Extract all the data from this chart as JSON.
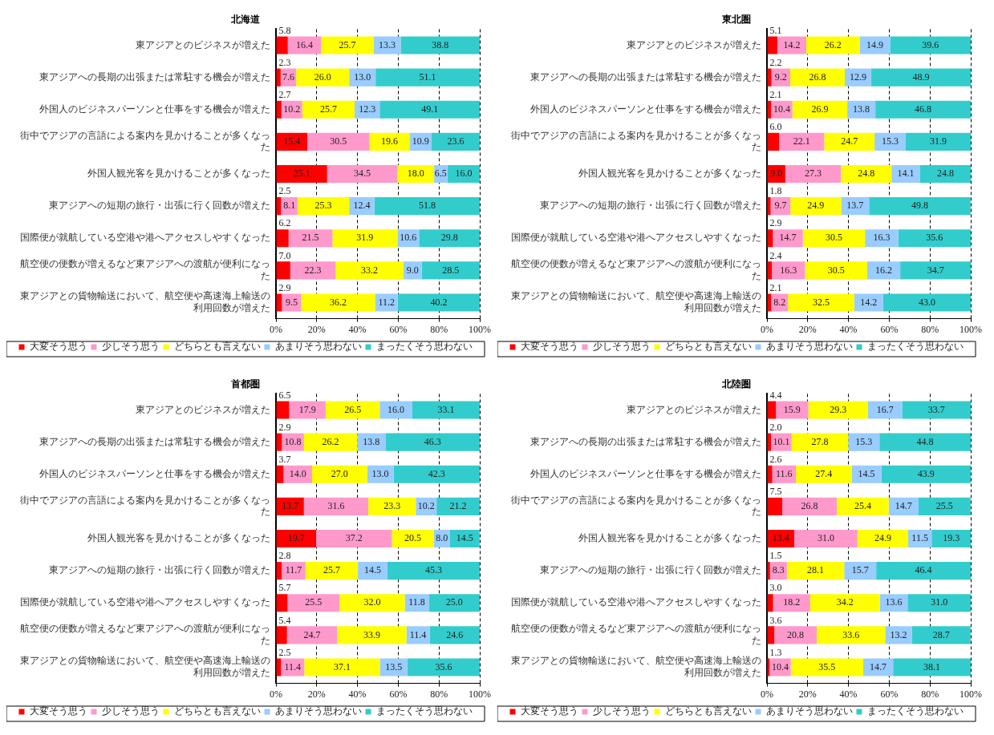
{
  "chart_data": [
    {
      "type": "bar",
      "orientation": "horizontal",
      "stacked": true,
      "title": "北海道",
      "categories": [
        "東アジアとのビジネスが増えた",
        "東アジアへの長期の出張または常駐する機会が増えた",
        "外国人のビジネスパーソンと仕事をする機会が増えた",
        "街中でアジアの言語による案内を見かけることが多くなった",
        "外国人観光客を見かけることが多くなった",
        "東アジアへの短期の旅行・出張に行く回数が増えた",
        "国際便が就航している空港や港へアクセスしやすくなった",
        "航空便の便数が増えるなど東アジアへの渡航が便利になった",
        "東アジアとの貨物輸送において、航空便や高速海上輸送の利用回数が増えた"
      ],
      "series": [
        {
          "name": "大変そう思う",
          "color": "#ff0000",
          "values": [
            5.8,
            2.3,
            2.7,
            15.4,
            25.1,
            2.5,
            6.2,
            7.0,
            2.9
          ],
          "value_labels": [
            "5.8",
            "2.3",
            "2.7",
            "15.4",
            "25.1",
            "2.5",
            "6.2",
            "7.0",
            "2.9"
          ]
        },
        {
          "name": "少しそう思う",
          "color": "#ff99cc",
          "values": [
            16.4,
            7.6,
            10.2,
            30.5,
            34.5,
            8.1,
            21.5,
            22.3,
            9.5
          ],
          "value_labels": [
            "16.4",
            "7.6",
            "10.2",
            "30.5",
            "34.5",
            "8.1",
            "21.5",
            "22.3",
            "9.5"
          ]
        },
        {
          "name": "どちらとも言えない",
          "color": "#ffff00",
          "values": [
            25.7,
            26.0,
            25.7,
            19.6,
            18.0,
            25.3,
            31.9,
            33.2,
            36.2
          ],
          "value_labels": [
            "25.7",
            "26.0",
            "25.7",
            "19.6",
            "18.0",
            "25.3",
            "31.9",
            "33.2",
            "36.2"
          ]
        },
        {
          "name": "あまりそう思わない",
          "color": "#99ccff",
          "values": [
            13.3,
            13.0,
            12.3,
            10.9,
            6.5,
            12.4,
            10.6,
            9.0,
            11.2
          ],
          "value_labels": [
            "13.3",
            "13.0",
            "12.3",
            "10.9",
            "6.5",
            "12.4",
            "10.6",
            "9.0",
            "11.2"
          ]
        },
        {
          "name": "まったくそう思わない",
          "color": "#33cccc",
          "values": [
            38.8,
            51.1,
            49.1,
            23.6,
            16.0,
            51.8,
            29.8,
            28.5,
            40.2
          ],
          "value_labels": [
            "38.8",
            "51.1",
            "49.1",
            "23.6",
            "16.0",
            "51.8",
            "29.8",
            "28.5",
            "40.2"
          ]
        }
      ],
      "xlim": [
        0,
        100
      ],
      "xticks": [
        {
          "value": 0,
          "label": "0%"
        },
        {
          "value": 20,
          "label": "20%"
        },
        {
          "value": 40,
          "label": "40%"
        },
        {
          "value": 60,
          "label": "60%"
        },
        {
          "value": 80,
          "label": "80%"
        },
        {
          "value": 100,
          "label": "100%"
        }
      ],
      "grid": "x",
      "legend": "bottom"
    },
    {
      "type": "bar",
      "orientation": "horizontal",
      "stacked": true,
      "title": "東北圏",
      "categories": [
        "東アジアとのビジネスが増えた",
        "東アジアへの長期の出張または常駐する機会が増えた",
        "外国人のビジネスパーソンと仕事をする機会が増えた",
        "街中でアジアの言語による案内を見かけることが多くなった",
        "外国人観光客を見かけることが多くなった",
        "東アジアへの短期の旅行・出張に行く回数が増えた",
        "国際便が就航している空港や港へアクセスしやすくなった",
        "航空便の便数が増えるなど東アジアへの渡航が便利になった",
        "東アジアとの貨物輸送において、航空便や高速海上輸送の利用回数が増えた"
      ],
      "series": [
        {
          "name": "大変そう思う",
          "color": "#ff0000",
          "values": [
            5.1,
            2.2,
            2.1,
            6.0,
            9.0,
            1.8,
            2.9,
            2.4,
            2.1
          ],
          "value_labels": [
            "5.1",
            "2.2",
            "2.1",
            "6.0",
            "9.0",
            "1.8",
            "2.9",
            "2.4",
            "2.1"
          ]
        },
        {
          "name": "少しそう思う",
          "color": "#ff99cc",
          "values": [
            14.2,
            9.2,
            10.4,
            22.1,
            27.3,
            9.7,
            14.7,
            16.3,
            8.2
          ],
          "value_labels": [
            "14.2",
            "9.2",
            "10.4",
            "22.1",
            "27.3",
            "9.7",
            "14.7",
            "16.3",
            "8.2"
          ]
        },
        {
          "name": "どちらとも言えない",
          "color": "#ffff00",
          "values": [
            26.2,
            26.8,
            26.9,
            24.7,
            24.8,
            24.9,
            30.5,
            30.5,
            32.5
          ],
          "value_labels": [
            "26.2",
            "26.8",
            "26.9",
            "24.7",
            "24.8",
            "24.9",
            "30.5",
            "30.5",
            "32.5"
          ]
        },
        {
          "name": "あまりそう思わない",
          "color": "#99ccff",
          "values": [
            14.9,
            12.9,
            13.8,
            15.3,
            14.1,
            13.7,
            16.3,
            16.2,
            14.2
          ],
          "value_labels": [
            "14.9",
            "12.9",
            "13.8",
            "15.3",
            "14.1",
            "13.7",
            "16.3",
            "16.2",
            "14.2"
          ]
        },
        {
          "name": "まったくそう思わない",
          "color": "#33cccc",
          "values": [
            39.6,
            48.9,
            46.8,
            31.9,
            24.8,
            49.8,
            35.6,
            34.7,
            43.0
          ],
          "value_labels": [
            "39.6",
            "48.9",
            "46.8",
            "31.9",
            "24.8",
            "49.8",
            "35.6",
            "34.7",
            "43.0"
          ]
        }
      ],
      "xlim": [
        0,
        100
      ],
      "xticks": [
        {
          "value": 0,
          "label": "0%"
        },
        {
          "value": 20,
          "label": "20%"
        },
        {
          "value": 40,
          "label": "40%"
        },
        {
          "value": 60,
          "label": "60%"
        },
        {
          "value": 80,
          "label": "80%"
        },
        {
          "value": 100,
          "label": "100%"
        }
      ],
      "grid": "x",
      "legend": "bottom"
    },
    {
      "type": "bar",
      "orientation": "horizontal",
      "stacked": true,
      "title": "首都圏",
      "categories": [
        "東アジアとのビジネスが増えた",
        "東アジアへの長期の出張または常駐する機会が増えた",
        "外国人のビジネスパーソンと仕事をする機会が増えた",
        "街中でアジアの言語による案内を見かけることが多くなった",
        "外国人観光客を見かけることが多くなった",
        "東アジアへの短期の旅行・出張に行く回数が増えた",
        "国際便が就航している空港や港へアクセスしやすくなった",
        "航空便の便数が増えるなど東アジアへの渡航が便利になった",
        "東アジアとの貨物輸送において、航空便や高速海上輸送の利用回数が増えた"
      ],
      "series": [
        {
          "name": "大変そう思う",
          "color": "#ff0000",
          "values": [
            6.5,
            2.9,
            3.7,
            13.7,
            19.7,
            2.8,
            5.7,
            5.4,
            2.5
          ],
          "value_labels": [
            "6.5",
            "2.9",
            "3.7",
            "13.7",
            "19.7",
            "2.8",
            "5.7",
            "5.4",
            "2.5"
          ]
        },
        {
          "name": "少しそう思う",
          "color": "#ff99cc",
          "values": [
            17.9,
            10.8,
            14.0,
            31.6,
            37.2,
            11.7,
            25.5,
            24.7,
            11.4
          ],
          "value_labels": [
            "17.9",
            "10.8",
            "14.0",
            "31.6",
            "37.2",
            "11.7",
            "25.5",
            "24.7",
            "11.4"
          ]
        },
        {
          "name": "どちらとも言えない",
          "color": "#ffff00",
          "values": [
            26.5,
            26.2,
            27.0,
            23.3,
            20.5,
            25.7,
            32.0,
            33.9,
            37.1
          ],
          "value_labels": [
            "26.5",
            "26.2",
            "27.0",
            "23.3",
            "20.5",
            "25.7",
            "32.0",
            "33.9",
            "37.1"
          ]
        },
        {
          "name": "あまりそう思わない",
          "color": "#99ccff",
          "values": [
            16.0,
            13.8,
            13.0,
            10.2,
            8.0,
            14.5,
            11.8,
            11.4,
            13.5
          ],
          "value_labels": [
            "16.0",
            "13.8",
            "13.0",
            "10.2",
            "8.0",
            "14.5",
            "11.8",
            "11.4",
            "13.5"
          ]
        },
        {
          "name": "まったくそう思わない",
          "color": "#33cccc",
          "values": [
            33.1,
            46.3,
            42.3,
            21.2,
            14.5,
            45.3,
            25.0,
            24.6,
            35.6
          ],
          "value_labels": [
            "33.1",
            "46.3",
            "42.3",
            "21.2",
            "14.5",
            "45.3",
            "25.0",
            "24.6",
            "35.6"
          ]
        }
      ],
      "xlim": [
        0,
        100
      ],
      "xticks": [
        {
          "value": 0,
          "label": "0%"
        },
        {
          "value": 20,
          "label": "20%"
        },
        {
          "value": 40,
          "label": "40%"
        },
        {
          "value": 60,
          "label": "60%"
        },
        {
          "value": 80,
          "label": "80%"
        },
        {
          "value": 100,
          "label": "100%"
        }
      ],
      "grid": "x",
      "legend": "bottom"
    },
    {
      "type": "bar",
      "orientation": "horizontal",
      "stacked": true,
      "title": "北陸圏",
      "categories": [
        "東アジアとのビジネスが増えた",
        "東アジアへの長期の出張または常駐する機会が増えた",
        "外国人のビジネスパーソンと仕事をする機会が増えた",
        "街中でアジアの言語による案内を見かけることが多くなった",
        "外国人観光客を見かけることが多くなった",
        "東アジアへの短期の旅行・出張に行く回数が増えた",
        "国際便が就航している空港や港へアクセスしやすくなった",
        "航空便の便数が増えるなど東アジアへの渡航が便利になった",
        "東アジアとの貨物輸送において、航空便や高速海上輸送の利用回数が増えた"
      ],
      "series": [
        {
          "name": "大変そう思う",
          "color": "#ff0000",
          "values": [
            4.4,
            2.0,
            2.6,
            7.5,
            13.4,
            1.5,
            3.0,
            3.6,
            1.3
          ],
          "value_labels": [
            "4.4",
            "2.0",
            "2.6",
            "7.5",
            "13.4",
            "1.5",
            "3.0",
            "3.6",
            "1.3"
          ]
        },
        {
          "name": "少しそう思う",
          "color": "#ff99cc",
          "values": [
            15.9,
            10.1,
            11.6,
            26.8,
            31.0,
            8.3,
            18.2,
            20.8,
            10.4
          ],
          "value_labels": [
            "15.9",
            "10.1",
            "11.6",
            "26.8",
            "31.0",
            "8.3",
            "18.2",
            "20.8",
            "10.4"
          ]
        },
        {
          "name": "どちらとも言えない",
          "color": "#ffff00",
          "values": [
            29.3,
            27.8,
            27.4,
            25.4,
            24.9,
            28.1,
            34.2,
            33.6,
            35.5
          ],
          "value_labels": [
            "29.3",
            "27.8",
            "27.4",
            "25.4",
            "24.9",
            "28.1",
            "34.2",
            "33.6",
            "35.5"
          ]
        },
        {
          "name": "あまりそう思わない",
          "color": "#99ccff",
          "values": [
            16.7,
            15.3,
            14.5,
            14.7,
            11.5,
            15.7,
            13.6,
            13.2,
            14.7
          ],
          "value_labels": [
            "16.7",
            "15.3",
            "14.5",
            "14.7",
            "11.5",
            "15.7",
            "13.6",
            "13.2",
            "14.7"
          ]
        },
        {
          "name": "まったくそう思わない",
          "color": "#33cccc",
          "values": [
            33.7,
            44.8,
            43.9,
            25.5,
            19.3,
            46.4,
            31.0,
            28.7,
            38.1
          ],
          "value_labels": [
            "33.7",
            "44.8",
            "43.9",
            "25.5",
            "19.3",
            "46.4",
            "31.0",
            "28.7",
            "38.1"
          ]
        }
      ],
      "xlim": [
        0,
        100
      ],
      "xticks": [
        {
          "value": 0,
          "label": "0%"
        },
        {
          "value": 20,
          "label": "20%"
        },
        {
          "value": 40,
          "label": "40%"
        },
        {
          "value": 60,
          "label": "60%"
        },
        {
          "value": 80,
          "label": "80%"
        },
        {
          "value": 100,
          "label": "100%"
        }
      ],
      "grid": "x",
      "legend": "bottom"
    }
  ]
}
